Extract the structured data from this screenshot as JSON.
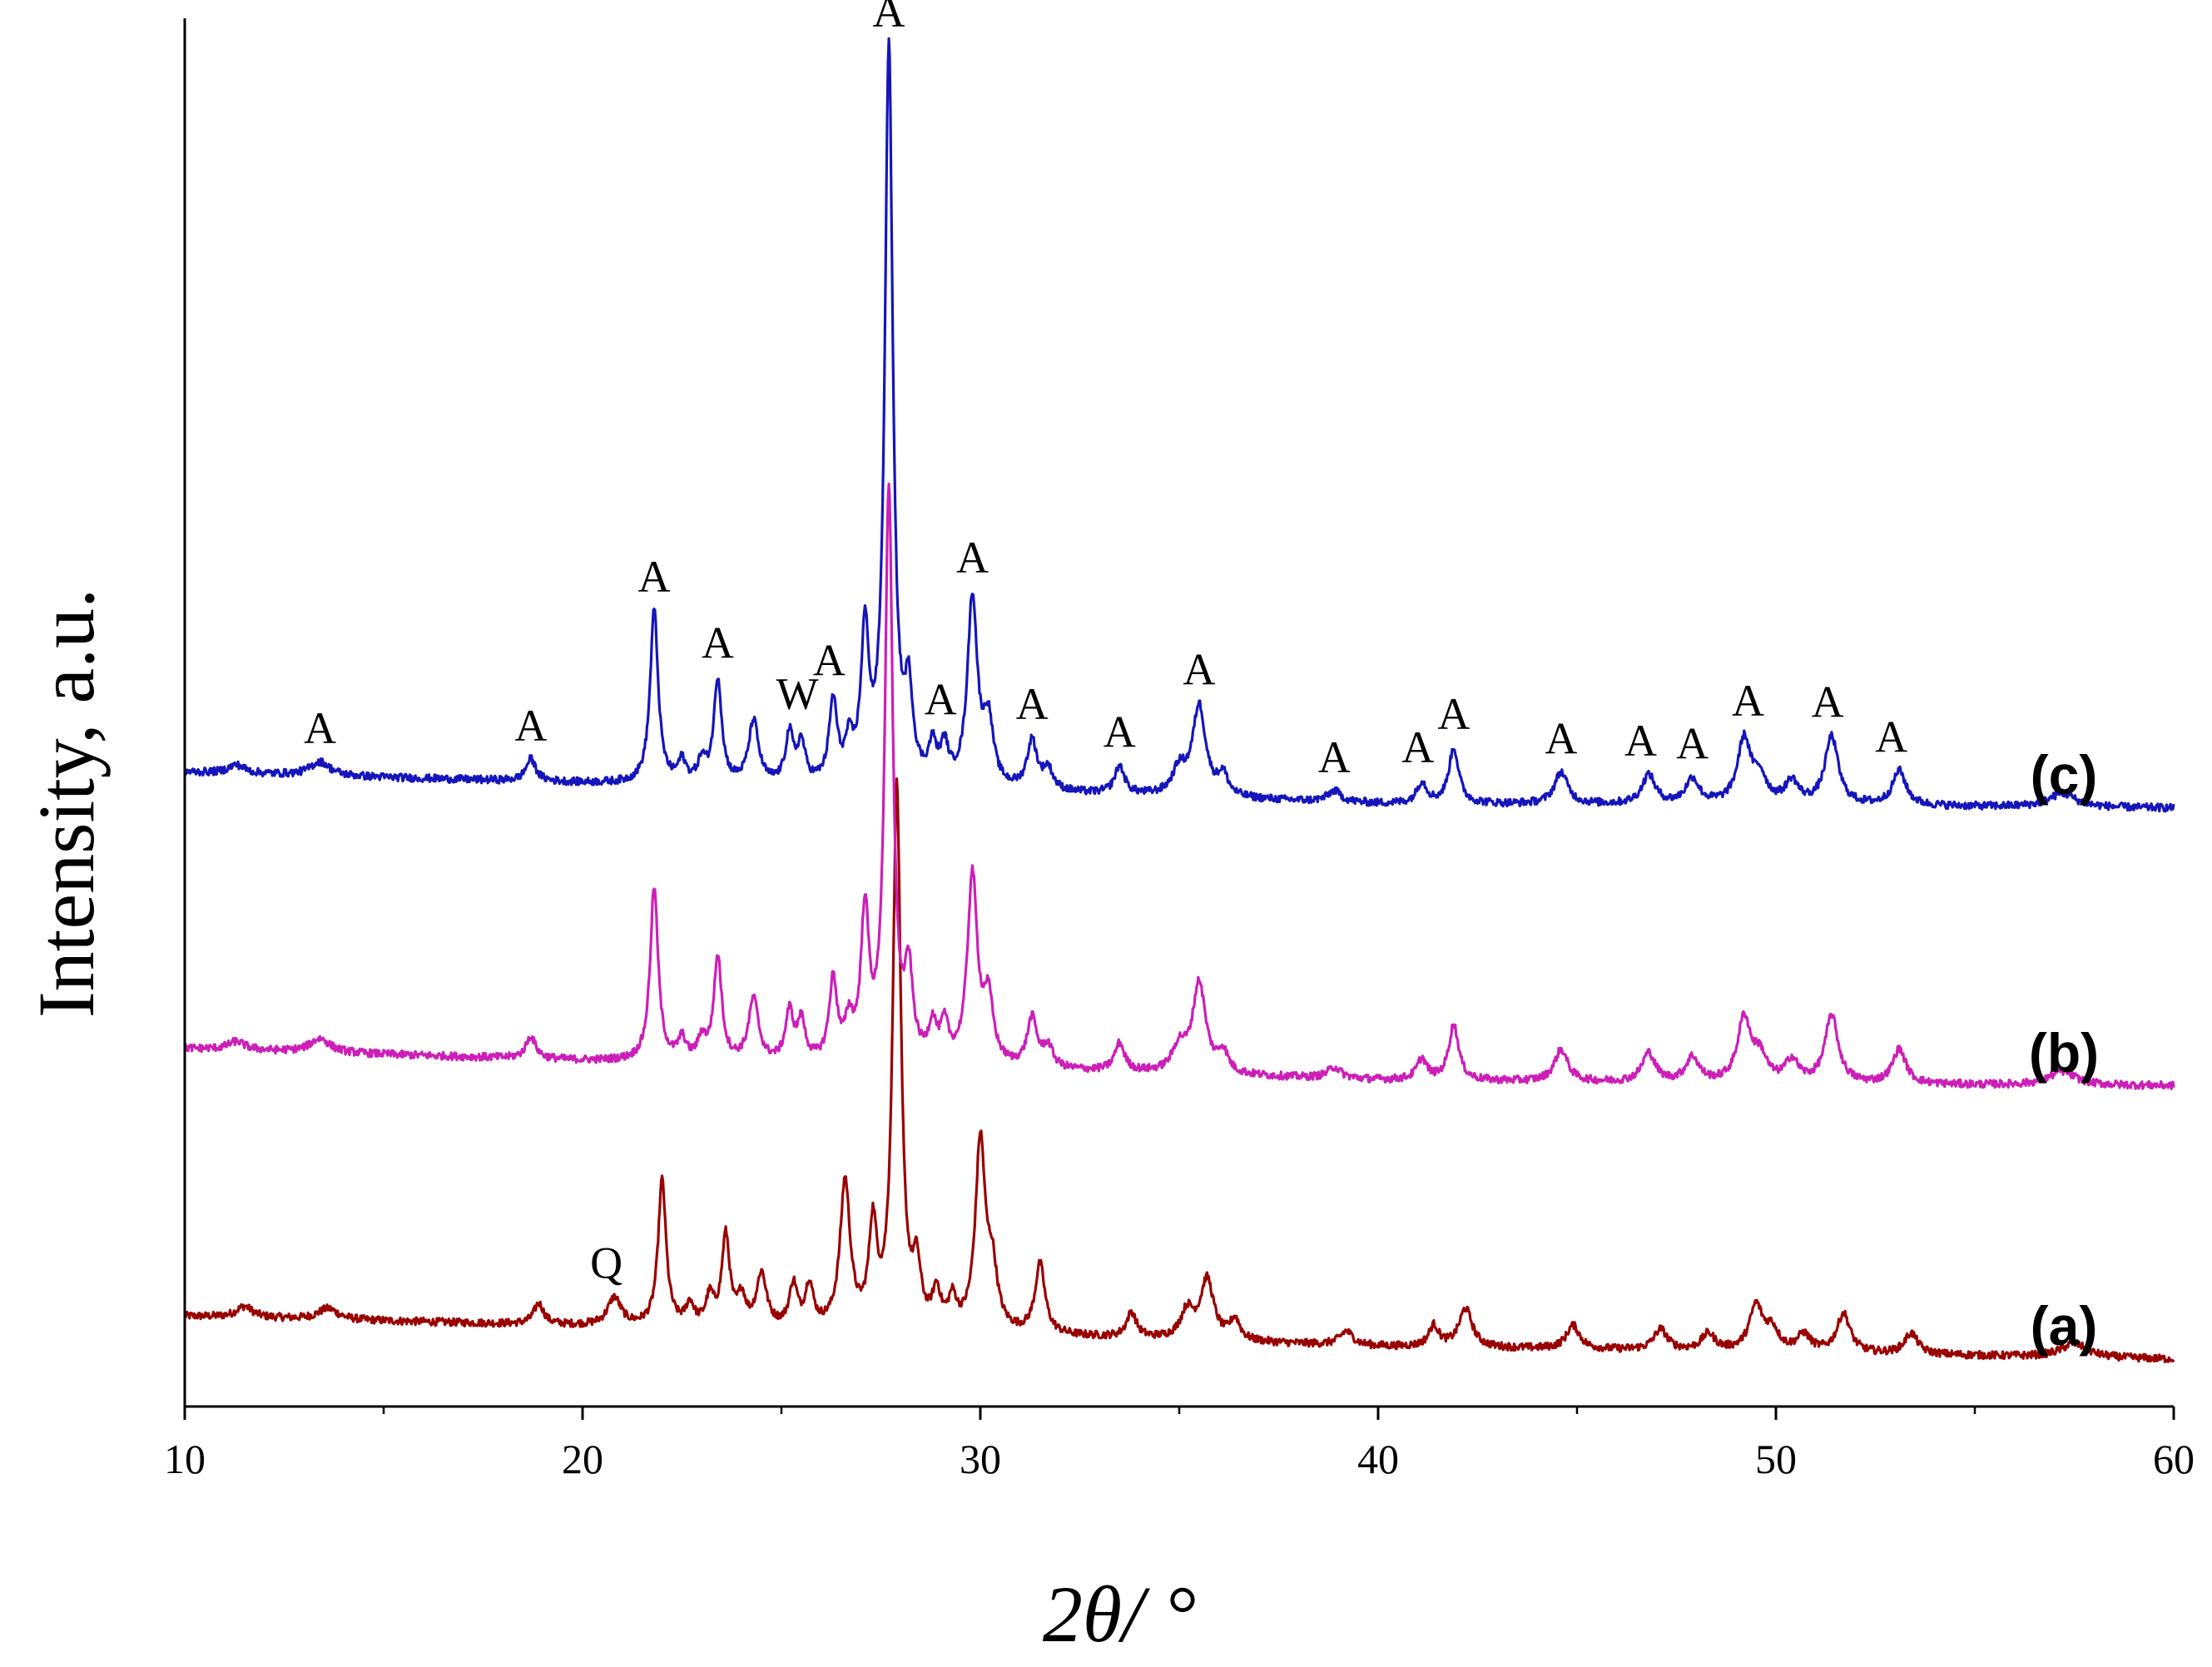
{
  "chart_data": {
    "type": "line",
    "title": "",
    "xlabel": "2θ/ °",
    "ylabel": "Intensity, a.u.",
    "xlim": [
      10,
      60
    ],
    "ylim": [
      0,
      100
    ],
    "y_ticks_shown": false,
    "grid": false,
    "legend": "none",
    "x_ticks": [
      10,
      20,
      30,
      40,
      50,
      60
    ],
    "x_tick_labels": [
      "10",
      "20",
      "30",
      "40",
      "50",
      "60"
    ],
    "series": [
      {
        "name": "(a)",
        "color": "#990000",
        "baseline": [
          [
            10,
            6.5
          ],
          [
            20,
            5.8
          ],
          [
            30,
            5.2
          ],
          [
            40,
            4.3
          ],
          [
            50,
            3.9
          ],
          [
            60,
            3.4
          ]
        ],
        "peaks": [
          [
            11.5,
            0.8,
            0.25
          ],
          [
            13.6,
            0.8,
            0.3
          ],
          [
            18.9,
            1.5,
            0.15
          ],
          [
            20.8,
            2.0,
            0.2
          ],
          [
            22.0,
            10.5,
            0.12
          ],
          [
            22.7,
            1.5,
            0.12
          ],
          [
            23.2,
            2.0,
            0.12
          ],
          [
            23.6,
            6.5,
            0.12
          ],
          [
            24.0,
            2.0,
            0.12
          ],
          [
            24.5,
            3.8,
            0.15
          ],
          [
            25.3,
            3.0,
            0.12
          ],
          [
            25.7,
            3.0,
            0.12
          ],
          [
            26.6,
            10.5,
            0.15
          ],
          [
            27.3,
            7.0,
            0.12
          ],
          [
            27.9,
            39.0,
            0.12
          ],
          [
            28.4,
            4.0,
            0.12
          ],
          [
            28.9,
            2.5,
            0.12
          ],
          [
            29.3,
            2.0,
            0.12
          ],
          [
            30.0,
            13.5,
            0.15
          ],
          [
            30.3,
            4.0,
            0.15
          ],
          [
            31.5,
            5.0,
            0.15
          ],
          [
            33.8,
            1.8,
            0.15
          ],
          [
            35.2,
            2.0,
            0.2
          ],
          [
            35.7,
            4.3,
            0.2
          ],
          [
            36.4,
            1.5,
            0.15
          ],
          [
            39.2,
            1.0,
            0.2
          ],
          [
            41.4,
            1.5,
            0.15
          ],
          [
            42.2,
            2.8,
            0.2
          ],
          [
            44.9,
            1.7,
            0.2
          ],
          [
            47.1,
            1.5,
            0.2
          ],
          [
            48.3,
            1.2,
            0.2
          ],
          [
            49.5,
            3.2,
            0.2
          ],
          [
            49.9,
            1.5,
            0.2
          ],
          [
            50.7,
            1.2,
            0.2
          ],
          [
            51.7,
            2.8,
            0.2
          ],
          [
            53.4,
            1.5,
            0.2
          ],
          [
            57.5,
            1.0,
            0.4
          ]
        ]
      },
      {
        "name": "(b)",
        "color": "#cc1fb8",
        "baseline": [
          [
            10,
            25.8
          ],
          [
            20,
            24.9
          ],
          [
            30,
            24.3
          ],
          [
            40,
            23.5
          ],
          [
            50,
            23.2
          ],
          [
            60,
            23.1
          ]
        ],
        "peaks": [
          [
            11.3,
            0.6,
            0.25
          ],
          [
            13.4,
            1.0,
            0.3
          ],
          [
            18.7,
            1.6,
            0.15
          ],
          [
            21.8,
            12.5,
            0.12
          ],
          [
            22.5,
            1.5,
            0.12
          ],
          [
            23.0,
            1.5,
            0.12
          ],
          [
            23.4,
            7.5,
            0.12
          ],
          [
            24.3,
            4.5,
            0.15
          ],
          [
            25.2,
            3.5,
            0.12
          ],
          [
            25.5,
            2.8,
            0.12
          ],
          [
            26.3,
            5.8,
            0.12
          ],
          [
            26.7,
            2.5,
            0.12
          ],
          [
            27.1,
            10.5,
            0.12
          ],
          [
            27.7,
            41.0,
            0.12
          ],
          [
            28.2,
            6.0,
            0.12
          ],
          [
            28.8,
            2.5,
            0.12
          ],
          [
            29.1,
            2.5,
            0.12
          ],
          [
            29.8,
            13.5,
            0.15
          ],
          [
            30.2,
            4.5,
            0.15
          ],
          [
            31.3,
            3.5,
            0.15
          ],
          [
            31.7,
            1.5,
            0.15
          ],
          [
            33.5,
            2.0,
            0.15
          ],
          [
            35.0,
            1.8,
            0.2
          ],
          [
            35.5,
            6.5,
            0.2
          ],
          [
            36.1,
            1.5,
            0.15
          ],
          [
            38.9,
            0.8,
            0.2
          ],
          [
            41.1,
            1.5,
            0.15
          ],
          [
            41.9,
            4.0,
            0.15
          ],
          [
            44.6,
            2.3,
            0.2
          ],
          [
            46.8,
            2.1,
            0.2
          ],
          [
            47.9,
            1.8,
            0.2
          ],
          [
            49.2,
            4.6,
            0.2
          ],
          [
            49.6,
            1.8,
            0.2
          ],
          [
            50.4,
            1.6,
            0.2
          ],
          [
            51.4,
            4.9,
            0.2
          ],
          [
            53.1,
            2.5,
            0.2
          ],
          [
            57.2,
            1.0,
            0.4
          ]
        ]
      },
      {
        "name": "(c)",
        "color": "#1515bb",
        "baseline": [
          [
            10,
            45.7
          ],
          [
            20,
            44.9
          ],
          [
            30,
            44.3
          ],
          [
            40,
            43.4
          ],
          [
            50,
            43.3
          ],
          [
            60,
            43.1
          ]
        ],
        "peaks": [
          [
            11.3,
            0.6,
            0.25
          ],
          [
            13.4,
            1.0,
            0.3
          ],
          [
            18.7,
            1.6,
            0.15
          ],
          [
            21.8,
            12.5,
            0.12
          ],
          [
            22.5,
            1.5,
            0.12
          ],
          [
            23.0,
            1.5,
            0.12
          ],
          [
            23.4,
            7.5,
            0.12
          ],
          [
            24.3,
            4.5,
            0.15
          ],
          [
            25.2,
            3.5,
            0.12
          ],
          [
            25.5,
            2.8,
            0.12
          ],
          [
            26.3,
            5.8,
            0.12
          ],
          [
            26.7,
            2.5,
            0.12
          ],
          [
            27.1,
            10.5,
            0.12
          ],
          [
            27.7,
            53.0,
            0.12
          ],
          [
            28.2,
            6.0,
            0.12
          ],
          [
            28.8,
            2.5,
            0.12
          ],
          [
            29.1,
            2.5,
            0.12
          ],
          [
            29.8,
            13.5,
            0.15
          ],
          [
            30.2,
            4.5,
            0.15
          ],
          [
            31.3,
            3.5,
            0.15
          ],
          [
            31.7,
            1.5,
            0.15
          ],
          [
            33.5,
            2.0,
            0.15
          ],
          [
            35.0,
            1.8,
            0.2
          ],
          [
            35.5,
            6.5,
            0.2
          ],
          [
            36.1,
            1.5,
            0.15
          ],
          [
            38.9,
            0.8,
            0.2
          ],
          [
            41.1,
            1.5,
            0.15
          ],
          [
            41.9,
            4.0,
            0.15
          ],
          [
            44.6,
            2.3,
            0.2
          ],
          [
            46.8,
            2.1,
            0.2
          ],
          [
            47.9,
            1.8,
            0.2
          ],
          [
            49.2,
            4.6,
            0.2
          ],
          [
            49.6,
            1.8,
            0.2
          ],
          [
            50.4,
            1.6,
            0.2
          ],
          [
            51.4,
            4.9,
            0.2
          ],
          [
            53.1,
            2.5,
            0.2
          ],
          [
            57.2,
            1.0,
            0.4
          ]
        ]
      }
    ],
    "annotations": [
      {
        "text": "A",
        "x": 13.4,
        "series": "(c)"
      },
      {
        "text": "A",
        "x": 18.7,
        "series": "(c)"
      },
      {
        "text": "A",
        "x": 21.8,
        "series": "(c)"
      },
      {
        "text": "A",
        "x": 23.4,
        "series": "(c)"
      },
      {
        "text": "W",
        "x": 25.4,
        "series": "(c)"
      },
      {
        "text": "A",
        "x": 26.2,
        "series": "(c)"
      },
      {
        "text": "A",
        "x": 27.7,
        "series": "(c)"
      },
      {
        "text": "A",
        "x": 29.0,
        "series": "(c)"
      },
      {
        "text": "A",
        "x": 29.8,
        "series": "(c)"
      },
      {
        "text": "A",
        "x": 31.3,
        "series": "(c)"
      },
      {
        "text": "A",
        "x": 33.5,
        "series": "(c)"
      },
      {
        "text": "A",
        "x": 35.5,
        "series": "(c)"
      },
      {
        "text": "A",
        "x": 38.9,
        "series": "(c)"
      },
      {
        "text": "A",
        "x": 41.0,
        "series": "(c)"
      },
      {
        "text": "A",
        "x": 41.9,
        "series": "(c)"
      },
      {
        "text": "A",
        "x": 44.6,
        "series": "(c)"
      },
      {
        "text": "A",
        "x": 46.6,
        "series": "(c)"
      },
      {
        "text": "A",
        "x": 47.9,
        "series": "(c)"
      },
      {
        "text": "A",
        "x": 49.3,
        "series": "(c)"
      },
      {
        "text": "A",
        "x": 51.3,
        "series": "(c)"
      },
      {
        "text": "A",
        "x": 52.9,
        "series": "(c)"
      },
      {
        "text": "Q",
        "x": 20.6,
        "series": "(a)"
      }
    ]
  }
}
